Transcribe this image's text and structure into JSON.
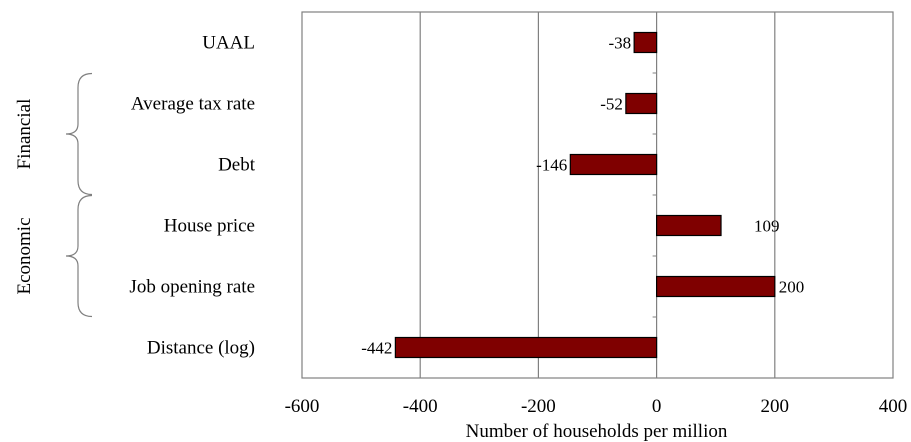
{
  "chart_data": {
    "type": "bar",
    "orientation": "horizontal",
    "categories": [
      "UAAL",
      "Average tax rate",
      "Debt",
      "House price",
      "Job opening rate",
      "Distance (log)"
    ],
    "values": [
      -38,
      -52,
      -146,
      109,
      200,
      -442
    ],
    "data_labels": [
      "-38",
      "-52",
      "-146",
      "109",
      "200",
      "-442"
    ],
    "groups": [
      {
        "name": "Financial",
        "categories": [
          "Average tax rate",
          "Debt"
        ]
      },
      {
        "name": "Economic",
        "categories": [
          "House price",
          "Job opening rate"
        ]
      }
    ],
    "xlabel": "Number of households per million",
    "ylabel": "",
    "xlim": [
      -600,
      400
    ],
    "xticks": [
      -600,
      -400,
      -200,
      0,
      200,
      400
    ],
    "xtick_labels": [
      "-600",
      "-400",
      "-200",
      "0",
      "200",
      "400"
    ],
    "grid": "vertical",
    "legend": "none",
    "colors": {
      "bar": "#7f0000",
      "bar_edge": "#000000",
      "grid": "#808080",
      "frame": "#808080"
    }
  }
}
